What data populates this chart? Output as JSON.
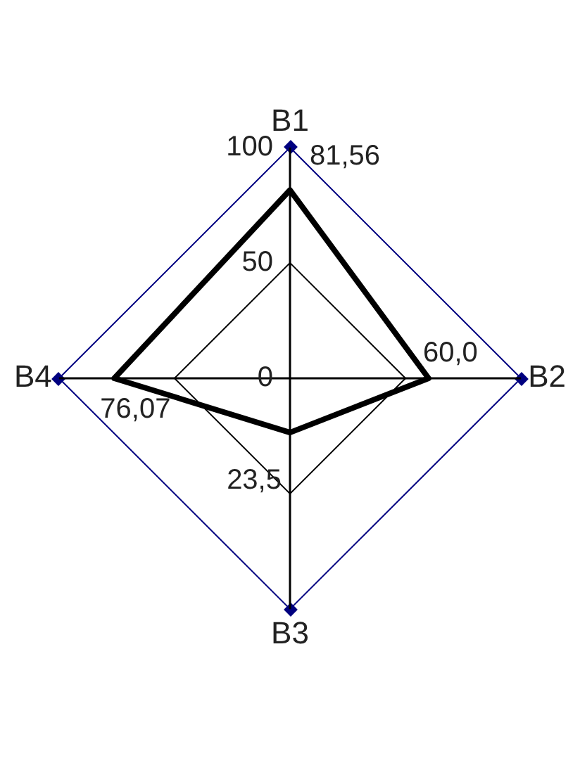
{
  "chart_data": {
    "type": "radar",
    "categories": [
      "B1",
      "B2",
      "B3",
      "B4"
    ],
    "series": [
      {
        "color": "#000000",
        "values": [
          81.56,
          60.0,
          23.5,
          76.07
        ],
        "value_labels": [
          "81,56",
          "60,0",
          "23,5",
          "76,07"
        ]
      }
    ],
    "ylim": [
      0,
      100
    ],
    "yticks": [
      0,
      50,
      100
    ],
    "grid": true,
    "legend": false
  }
}
